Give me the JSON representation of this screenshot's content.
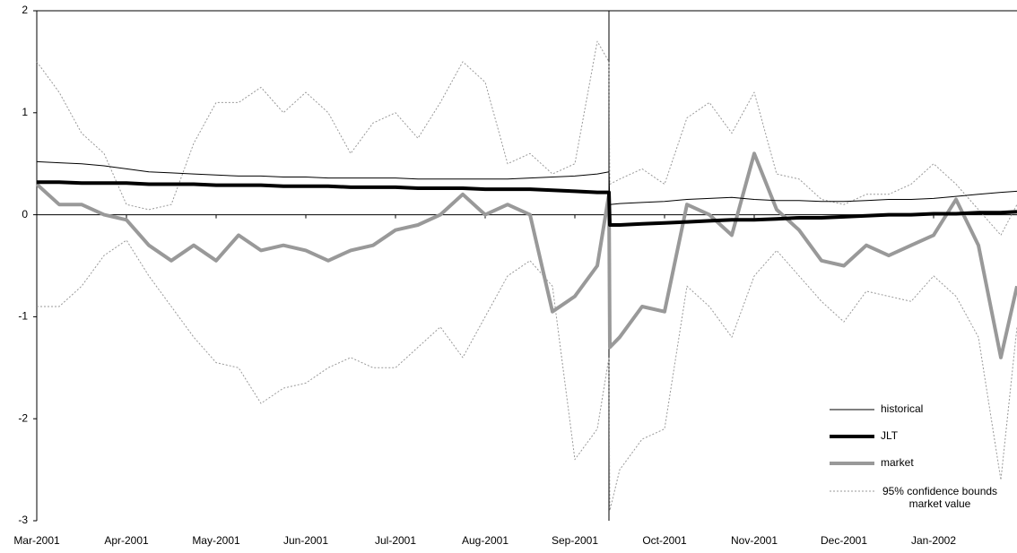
{
  "chart_data": {
    "type": "line",
    "x": [
      0,
      0.25,
      0.5,
      0.75,
      1,
      1.25,
      1.5,
      1.75,
      2,
      2.25,
      2.5,
      2.75,
      3,
      3.25,
      3.5,
      3.75,
      4,
      4.25,
      4.5,
      4.75,
      5,
      5.25,
      5.5,
      5.75,
      6,
      6.25,
      6.38,
      6.39,
      6.5,
      6.75,
      7,
      7.25,
      7.5,
      7.75,
      8,
      8.25,
      8.5,
      8.75,
      9,
      9.25,
      9.5,
      9.75,
      10,
      10.25,
      10.5,
      10.75,
      10.93
    ],
    "series": [
      {
        "name": "historical",
        "color": "#000000",
        "width": 1,
        "dashed": false,
        "values": [
          0.52,
          0.51,
          0.5,
          0.48,
          0.45,
          0.42,
          0.41,
          0.4,
          0.39,
          0.38,
          0.38,
          0.37,
          0.37,
          0.36,
          0.36,
          0.36,
          0.36,
          0.35,
          0.35,
          0.35,
          0.35,
          0.35,
          0.36,
          0.37,
          0.38,
          0.4,
          0.42,
          0.1,
          0.11,
          0.12,
          0.13,
          0.15,
          0.16,
          0.17,
          0.15,
          0.14,
          0.14,
          0.13,
          0.13,
          0.14,
          0.15,
          0.15,
          0.16,
          0.18,
          0.2,
          0.22,
          0.23
        ]
      },
      {
        "name": "JLT",
        "color": "#000000",
        "width": 4,
        "dashed": false,
        "values": [
          0.32,
          0.32,
          0.31,
          0.31,
          0.31,
          0.3,
          0.3,
          0.3,
          0.29,
          0.29,
          0.29,
          0.28,
          0.28,
          0.28,
          0.27,
          0.27,
          0.27,
          0.26,
          0.26,
          0.26,
          0.25,
          0.25,
          0.25,
          0.24,
          0.23,
          0.22,
          0.22,
          -0.1,
          -0.1,
          -0.09,
          -0.08,
          -0.07,
          -0.06,
          -0.05,
          -0.05,
          -0.04,
          -0.03,
          -0.03,
          -0.02,
          -0.01,
          0,
          0,
          0.01,
          0.01,
          0.02,
          0.02,
          0.03
        ]
      },
      {
        "name": "market",
        "color": "#999999",
        "width": 4,
        "dashed": false,
        "values": [
          0.3,
          0.1,
          0.1,
          0.0,
          -0.05,
          -0.3,
          -0.45,
          -0.3,
          -0.45,
          -0.2,
          -0.35,
          -0.3,
          -0.35,
          -0.45,
          -0.35,
          -0.3,
          -0.15,
          -0.1,
          0.0,
          0.2,
          0.0,
          0.1,
          0.0,
          -0.95,
          -0.8,
          -0.5,
          0.2,
          -1.3,
          -1.2,
          -0.9,
          -0.95,
          0.1,
          0.0,
          -0.2,
          0.6,
          0.05,
          -0.15,
          -0.45,
          -0.5,
          -0.3,
          -0.4,
          -0.3,
          -0.2,
          0.15,
          -0.3,
          -1.4,
          -0.7
        ]
      },
      {
        "name": "95% confidence bounds market value",
        "color": "#999999",
        "width": 1,
        "dashed": true,
        "values": [
          1.5,
          1.2,
          0.8,
          0.6,
          0.1,
          0.05,
          0.1,
          0.7,
          1.1,
          1.1,
          1.25,
          1.0,
          1.2,
          1.0,
          0.6,
          0.9,
          1.0,
          0.75,
          1.1,
          1.5,
          1.3,
          0.5,
          0.6,
          0.4,
          0.5,
          1.7,
          1.5,
          0.3,
          0.35,
          0.45,
          0.3,
          0.95,
          1.1,
          0.8,
          1.2,
          0.4,
          0.35,
          0.15,
          0.1,
          0.2,
          0.2,
          0.3,
          0.5,
          0.3,
          0.05,
          -0.2,
          0.1
        ],
        "lower": [
          -0.9,
          -0.9,
          -0.7,
          -0.4,
          -0.25,
          -0.6,
          -0.9,
          -1.2,
          -1.45,
          -1.5,
          -1.85,
          -1.7,
          -1.65,
          -1.5,
          -1.4,
          -1.5,
          -1.5,
          -1.3,
          -1.1,
          -1.4,
          -1.0,
          -0.6,
          -0.45,
          -0.7,
          -2.4,
          -2.1,
          -1.4,
          -2.9,
          -2.5,
          -2.2,
          -2.1,
          -0.7,
          -0.9,
          -1.2,
          -0.6,
          -0.35,
          -0.6,
          -0.85,
          -1.05,
          -0.75,
          -0.8,
          -0.85,
          -0.6,
          -0.8,
          -1.2,
          -2.6,
          -1.1
        ]
      }
    ],
    "event_line_x": 6.38,
    "xlim": [
      0,
      10.93
    ],
    "xticks": [
      {
        "value": 0,
        "label": "Mar-2001"
      },
      {
        "value": 1,
        "label": "Apr-2001"
      },
      {
        "value": 2,
        "label": "May-2001"
      },
      {
        "value": 3,
        "label": "Jun-2001"
      },
      {
        "value": 4,
        "label": "Jul-2001"
      },
      {
        "value": 5,
        "label": "Aug-2001"
      },
      {
        "value": 6,
        "label": "Sep-2001"
      },
      {
        "value": 7,
        "label": "Oct-2001"
      },
      {
        "value": 8,
        "label": "Nov-2001"
      },
      {
        "value": 9,
        "label": "Dec-2001"
      },
      {
        "value": 10,
        "label": "Jan-2002"
      }
    ],
    "ylim": [
      -3,
      2
    ],
    "yticks": [
      -3,
      -2,
      -1,
      0,
      1,
      2
    ],
    "legend": "lower right"
  }
}
